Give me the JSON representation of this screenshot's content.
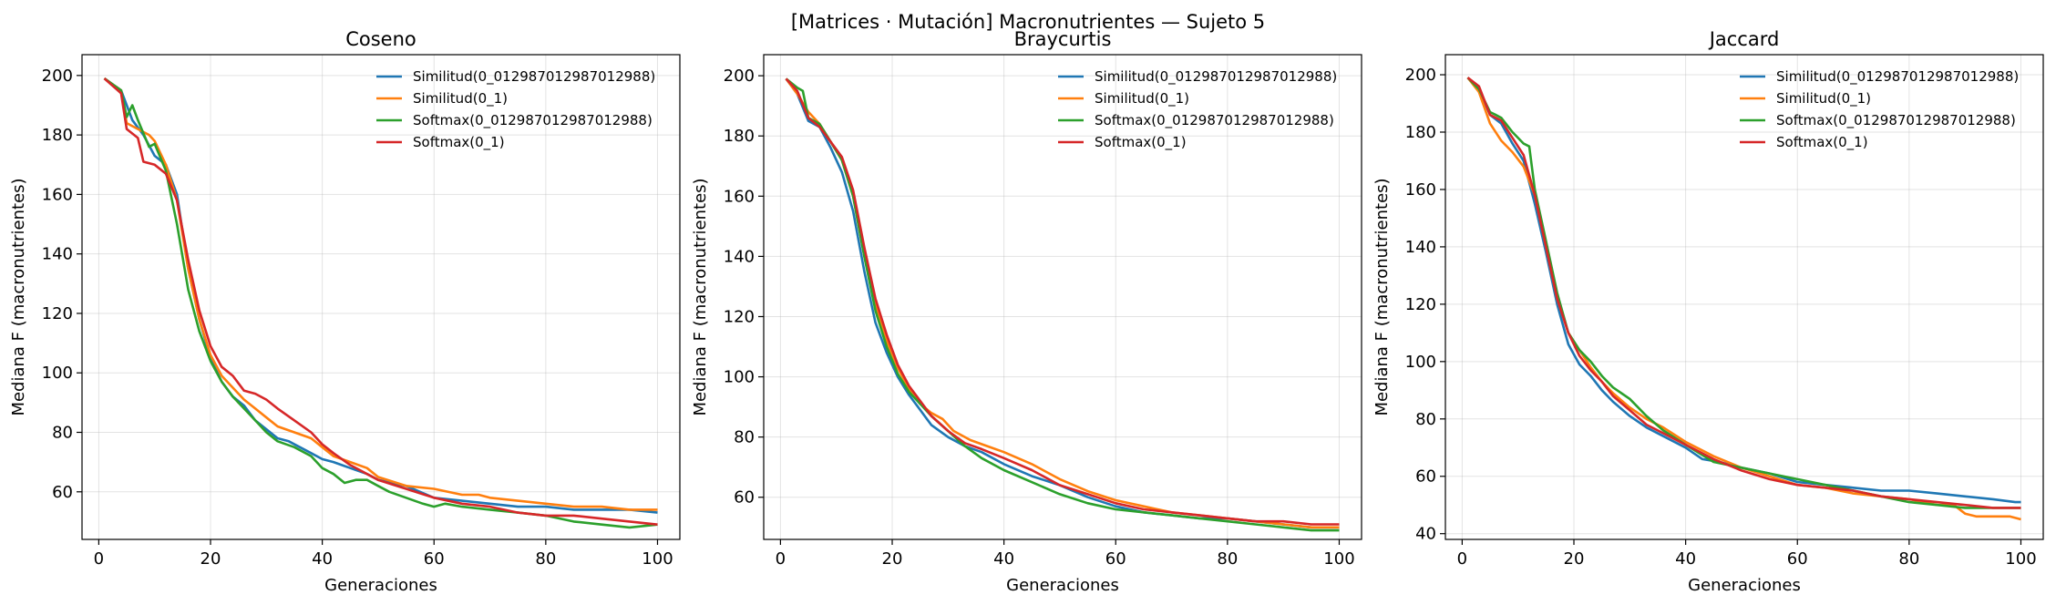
{
  "figure": {
    "suptitle": "[Matrices · Mutación] Macronutrientes — Sujeto 5"
  },
  "chart_data": [
    {
      "type": "line",
      "title": "Coseno",
      "xlabel": "Generaciones",
      "ylabel": "Mediana F (macronutrientes)",
      "xlim": [
        -3,
        104
      ],
      "ylim": [
        44,
        207
      ],
      "xticks": [
        0,
        20,
        40,
        60,
        80,
        100
      ],
      "yticks": [
        60,
        80,
        100,
        120,
        140,
        160,
        180,
        200
      ],
      "grid": true,
      "legend_position": "top-right",
      "series": [
        {
          "name": "Similitud(0_012987012987012988)",
          "color": "#1f77b4",
          "x": [
            1,
            4,
            6,
            8,
            10,
            12,
            14,
            16,
            18,
            20,
            22,
            24,
            26,
            28,
            30,
            32,
            34,
            36,
            38,
            40,
            42,
            45,
            48,
            50,
            55,
            60,
            65,
            70,
            75,
            80,
            85,
            90,
            95,
            100
          ],
          "y": [
            199,
            195,
            185,
            180,
            173,
            170,
            160,
            135,
            118,
            105,
            97,
            92,
            89,
            84,
            81,
            78,
            77,
            75,
            73,
            71,
            70,
            68,
            66,
            64,
            62,
            58,
            57,
            56,
            55,
            55,
            54,
            54,
            54,
            53
          ]
        },
        {
          "name": "Similitud(0_1)",
          "color": "#ff7f0e",
          "x": [
            1,
            4,
            5,
            7,
            9,
            10,
            12,
            14,
            16,
            18,
            20,
            22,
            24,
            26,
            28,
            30,
            32,
            35,
            38,
            40,
            42,
            45,
            48,
            50,
            55,
            60,
            65,
            68,
            70,
            75,
            80,
            85,
            90,
            95,
            100
          ],
          "y": [
            199,
            195,
            184,
            182,
            180,
            178,
            170,
            158,
            135,
            118,
            106,
            99,
            95,
            91,
            88,
            85,
            82,
            80,
            78,
            75,
            72,
            70,
            68,
            65,
            62,
            61,
            59,
            59,
            58,
            57,
            56,
            55,
            55,
            54,
            54
          ]
        },
        {
          "name": "Softmax(0_012987012987012988)",
          "color": "#2ca02c",
          "x": [
            1,
            4,
            5,
            6,
            7,
            9,
            10,
            12,
            14,
            16,
            18,
            20,
            22,
            24,
            26,
            28,
            30,
            32,
            35,
            38,
            40,
            42,
            44,
            46,
            48,
            50,
            52,
            55,
            58,
            60,
            62,
            65,
            70,
            75,
            80,
            85,
            90,
            95,
            100
          ],
          "y": [
            199,
            195,
            186,
            190,
            185,
            176,
            177,
            168,
            150,
            128,
            114,
            104,
            97,
            92,
            88,
            84,
            80,
            77,
            75,
            72,
            68,
            66,
            63,
            64,
            64,
            62,
            60,
            58,
            56,
            55,
            56,
            55,
            54,
            53,
            52,
            50,
            49,
            48,
            49
          ]
        },
        {
          "name": "Softmax(0_1)",
          "color": "#d62728",
          "x": [
            1,
            4,
            5,
            7,
            8,
            10,
            12,
            14,
            16,
            18,
            20,
            22,
            24,
            26,
            28,
            30,
            32,
            35,
            38,
            40,
            42,
            45,
            48,
            50,
            55,
            60,
            65,
            70,
            75,
            80,
            85,
            90,
            95,
            100
          ],
          "y": [
            199,
            194,
            182,
            179,
            171,
            170,
            167,
            158,
            138,
            121,
            109,
            102,
            99,
            94,
            93,
            91,
            88,
            84,
            80,
            76,
            73,
            69,
            66,
            64,
            61,
            58,
            56,
            55,
            53,
            52,
            52,
            51,
            50,
            49
          ]
        }
      ]
    },
    {
      "type": "line",
      "title": "Braycurtis",
      "xlabel": "Generaciones",
      "ylabel": "Mediana F (macronutrientes)",
      "xlim": [
        -3,
        104
      ],
      "ylim": [
        46,
        207
      ],
      "xticks": [
        0,
        20,
        40,
        60,
        80,
        100
      ],
      "yticks": [
        60,
        80,
        100,
        120,
        140,
        160,
        180,
        200
      ],
      "grid": true,
      "legend_position": "top-right",
      "series": [
        {
          "name": "Similitud(0_012987012987012988)",
          "color": "#1f77b4",
          "x": [
            1,
            3,
            5,
            7,
            9,
            11,
            13,
            15,
            17,
            19,
            21,
            23,
            25,
            27,
            30,
            33,
            36,
            40,
            45,
            50,
            55,
            60,
            65,
            70,
            75,
            80,
            85,
            90,
            95,
            100
          ],
          "y": [
            199,
            194,
            185,
            183,
            176,
            168,
            155,
            135,
            118,
            108,
            100,
            94,
            89,
            84,
            80,
            77,
            75,
            71,
            67,
            64,
            60,
            57,
            55,
            54,
            53,
            53,
            52,
            51,
            50,
            50
          ]
        },
        {
          "name": "Similitud(0_1)",
          "color": "#ff7f0e",
          "x": [
            1,
            3,
            5,
            7,
            9,
            11,
            13,
            15,
            17,
            19,
            21,
            23,
            25,
            27,
            29,
            31,
            34,
            37,
            40,
            45,
            50,
            55,
            60,
            65,
            70,
            75,
            80,
            85,
            90,
            95,
            100
          ],
          "y": [
            199,
            194,
            188,
            184,
            178,
            172,
            160,
            140,
            124,
            112,
            103,
            96,
            91,
            88,
            86,
            82,
            79,
            77,
            75,
            71,
            66,
            62,
            59,
            57,
            55,
            54,
            53,
            52,
            51,
            50,
            50
          ]
        },
        {
          "name": "Softmax(0_012987012987012988)",
          "color": "#2ca02c",
          "x": [
            1,
            3,
            4,
            5,
            7,
            9,
            11,
            13,
            15,
            17,
            19,
            21,
            23,
            25,
            27,
            30,
            33,
            36,
            40,
            45,
            50,
            55,
            60,
            65,
            70,
            75,
            80,
            85,
            90,
            95,
            100
          ],
          "y": [
            199,
            196,
            195,
            186,
            184,
            178,
            172,
            160,
            140,
            122,
            110,
            101,
            95,
            91,
            87,
            82,
            77,
            73,
            69,
            65,
            61,
            58,
            56,
            55,
            54,
            53,
            52,
            51,
            50,
            49,
            49
          ]
        },
        {
          "name": "Softmax(0_1)",
          "color": "#d62728",
          "x": [
            1,
            3,
            5,
            7,
            9,
            11,
            13,
            15,
            17,
            19,
            21,
            23,
            25,
            27,
            30,
            33,
            36,
            40,
            45,
            50,
            55,
            60,
            65,
            70,
            75,
            80,
            85,
            90,
            95,
            100
          ],
          "y": [
            199,
            195,
            186,
            183,
            178,
            173,
            162,
            143,
            126,
            114,
            104,
            97,
            92,
            87,
            82,
            78,
            76,
            73,
            69,
            64,
            61,
            58,
            56,
            55,
            54,
            53,
            52,
            52,
            51,
            51
          ]
        }
      ]
    },
    {
      "type": "line",
      "title": "Jaccard",
      "xlabel": "Generaciones",
      "ylabel": "Mediana F (macronutrientes)",
      "xlim": [
        -3,
        104
      ],
      "ylim": [
        38,
        207
      ],
      "xticks": [
        0,
        20,
        40,
        60,
        80,
        100
      ],
      "yticks": [
        40,
        60,
        80,
        100,
        120,
        140,
        160,
        180,
        200
      ],
      "grid": true,
      "legend_position": "top-right",
      "series": [
        {
          "name": "Similitud(0_012987012987012988)",
          "color": "#1f77b4",
          "x": [
            1,
            3,
            5,
            7,
            9,
            11,
            13,
            15,
            17,
            19,
            21,
            23,
            25,
            27,
            30,
            33,
            36,
            40,
            43,
            46,
            50,
            55,
            60,
            65,
            70,
            75,
            80,
            85,
            90,
            95,
            99,
            100
          ],
          "y": [
            199,
            195,
            186,
            183,
            176,
            170,
            155,
            138,
            120,
            106,
            99,
            95,
            90,
            86,
            81,
            77,
            74,
            70,
            66,
            65,
            63,
            61,
            58,
            57,
            56,
            55,
            55,
            54,
            53,
            52,
            51,
            51
          ]
        },
        {
          "name": "Similitud(0_1)",
          "color": "#ff7f0e",
          "x": [
            1,
            3,
            5,
            7,
            9,
            11,
            13,
            15,
            17,
            19,
            21,
            23,
            25,
            27,
            30,
            33,
            36,
            40,
            45,
            50,
            55,
            60,
            65,
            70,
            75,
            80,
            85,
            88,
            90,
            92,
            95,
            98,
            100
          ],
          "y": [
            199,
            194,
            183,
            177,
            173,
            168,
            158,
            140,
            122,
            110,
            104,
            98,
            93,
            89,
            84,
            80,
            77,
            72,
            67,
            63,
            60,
            57,
            56,
            54,
            53,
            52,
            50,
            50,
            47,
            46,
            46,
            46,
            45
          ]
        },
        {
          "name": "Softmax(0_012987012987012988)",
          "color": "#2ca02c",
          "x": [
            1,
            3,
            5,
            6,
            7,
            9,
            11,
            12,
            13,
            15,
            17,
            19,
            21,
            23,
            25,
            27,
            30,
            33,
            36,
            40,
            45,
            50,
            55,
            60,
            65,
            70,
            75,
            80,
            85,
            90,
            95,
            100
          ],
          "y": [
            199,
            195,
            187,
            186,
            185,
            180,
            176,
            175,
            160,
            142,
            124,
            110,
            104,
            100,
            95,
            91,
            87,
            81,
            76,
            71,
            65,
            63,
            61,
            59,
            57,
            55,
            53,
            51,
            50,
            49,
            49,
            49
          ]
        },
        {
          "name": "Softmax(0_1)",
          "color": "#d62728",
          "x": [
            1,
            3,
            5,
            7,
            9,
            11,
            13,
            15,
            17,
            19,
            21,
            23,
            25,
            27,
            30,
            33,
            36,
            40,
            42,
            45,
            50,
            55,
            60,
            65,
            70,
            75,
            80,
            85,
            90,
            95,
            100
          ],
          "y": [
            199,
            196,
            186,
            184,
            178,
            172,
            158,
            140,
            122,
            110,
            102,
            97,
            93,
            88,
            83,
            78,
            75,
            71,
            69,
            66,
            62,
            59,
            57,
            56,
            55,
            53,
            52,
            51,
            50,
            49,
            49
          ]
        }
      ]
    }
  ]
}
